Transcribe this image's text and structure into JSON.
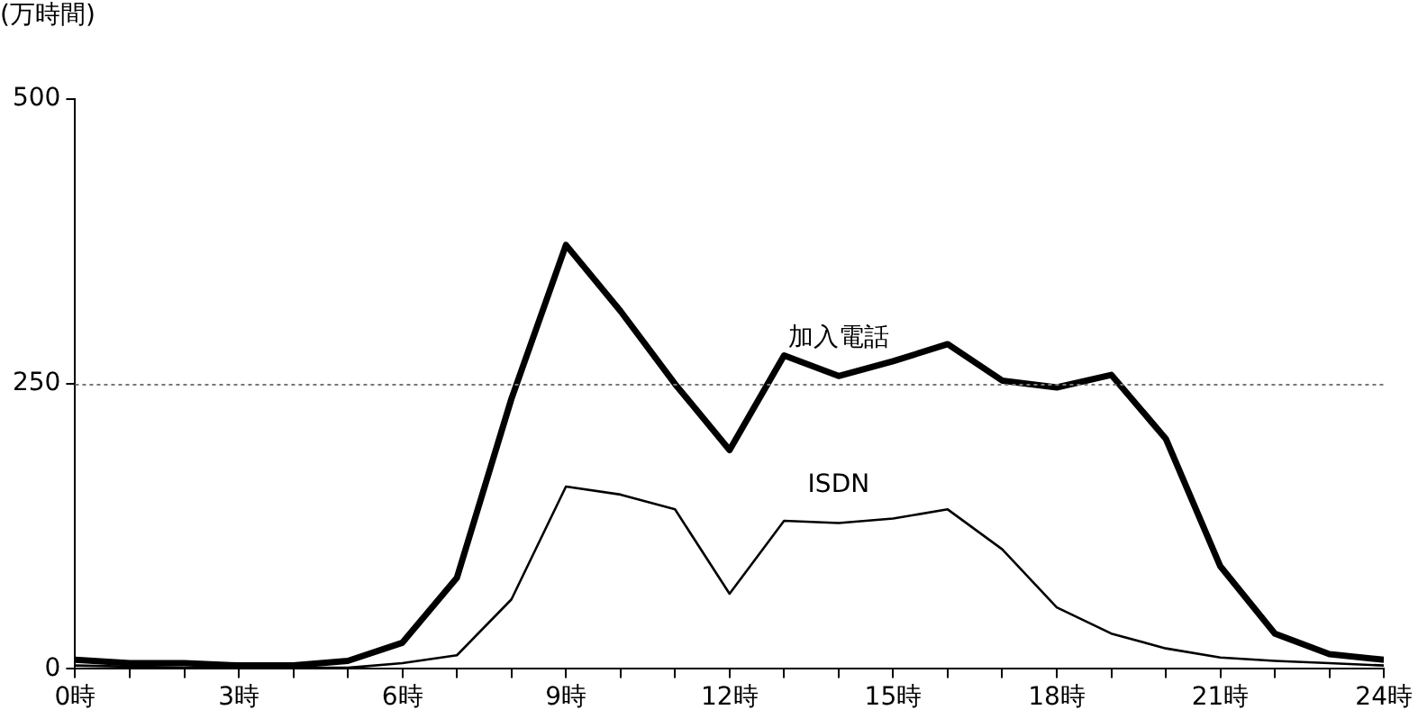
{
  "chart_data": {
    "type": "line",
    "ylabel": "(万時間)",
    "x": [
      0,
      1,
      2,
      3,
      4,
      5,
      6,
      7,
      8,
      9,
      10,
      11,
      12,
      13,
      14,
      15,
      16,
      17,
      18,
      19,
      20,
      21,
      22,
      23,
      24
    ],
    "series": [
      {
        "name": "加入電話",
        "color": "#000000",
        "values": [
          8,
          5,
          5,
          3,
          3,
          7,
          23,
          80,
          237,
          372,
          314,
          250,
          192,
          275,
          257,
          270,
          285,
          253,
          247,
          258,
          202,
          90,
          31,
          13,
          8
        ]
      },
      {
        "name": "ISDN",
        "color": "#000000",
        "values": [
          3,
          2,
          1,
          1,
          1,
          1,
          5,
          12,
          61,
          160,
          153,
          140,
          66,
          130,
          128,
          132,
          140,
          105,
          54,
          31,
          18,
          10,
          7,
          5,
          3
        ]
      }
    ],
    "xlim": [
      0,
      24
    ],
    "xticks": [
      {
        "value": 0,
        "label": "0時"
      },
      {
        "value": 1,
        "label": null
      },
      {
        "value": 2,
        "label": null
      },
      {
        "value": 3,
        "label": "3時"
      },
      {
        "value": 4,
        "label": null
      },
      {
        "value": 5,
        "label": null
      },
      {
        "value": 6,
        "label": "6時"
      },
      {
        "value": 7,
        "label": null
      },
      {
        "value": 8,
        "label": null
      },
      {
        "value": 9,
        "label": "9時"
      },
      {
        "value": 10,
        "label": null
      },
      {
        "value": 11,
        "label": null
      },
      {
        "value": 12,
        "label": "12時"
      },
      {
        "value": 13,
        "label": null
      },
      {
        "value": 14,
        "label": null
      },
      {
        "value": 15,
        "label": "15時"
      },
      {
        "value": 16,
        "label": null
      },
      {
        "value": 17,
        "label": null
      },
      {
        "value": 18,
        "label": "18時"
      },
      {
        "value": 19,
        "label": null
      },
      {
        "value": 20,
        "label": null
      },
      {
        "value": 21,
        "label": "21時"
      },
      {
        "value": 22,
        "label": null
      },
      {
        "value": 23,
        "label": null
      },
      {
        "value": 24,
        "label": "24時"
      }
    ],
    "ylim": [
      0,
      500
    ],
    "yticks": [
      0,
      250,
      500
    ],
    "grid": "y",
    "legend": false,
    "marker": "none",
    "line_style": "solid"
  }
}
